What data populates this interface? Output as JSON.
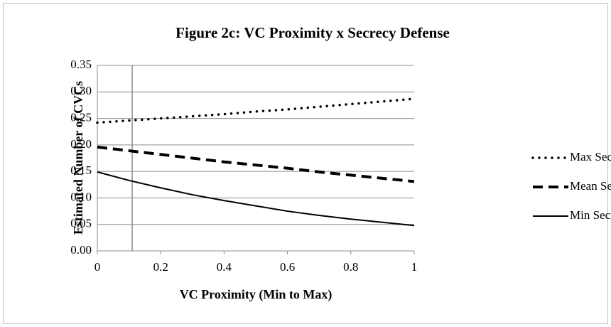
{
  "chart_data": {
    "type": "line",
    "title": "Figure 2c: VC Proximity x Secrecy Defense",
    "x_label": "VC Proximity (Min to Max)",
    "y_label": "Estimated  Number of CVCs",
    "x": [
      0,
      0.1,
      0.2,
      0.3,
      0.4,
      0.5,
      0.6,
      0.7,
      0.8,
      0.9,
      1
    ],
    "series": [
      {
        "name": "Max Secrecy",
        "color": "#000000",
        "style": "dotted",
        "values": [
          0.242,
          0.246,
          0.25,
          0.254,
          0.258,
          0.263,
          0.267,
          0.272,
          0.277,
          0.282,
          0.287
        ]
      },
      {
        "name": "Mean Secrecy",
        "color": "#000000",
        "style": "dashed",
        "values": [
          0.196,
          0.189,
          0.182,
          0.175,
          0.168,
          0.162,
          0.156,
          0.149,
          0.143,
          0.137,
          0.131
        ]
      },
      {
        "name": "Min Secrecy",
        "color": "#000000",
        "style": "solid",
        "values": [
          0.149,
          0.133,
          0.119,
          0.106,
          0.095,
          0.085,
          0.075,
          0.067,
          0.06,
          0.054,
          0.048
        ]
      }
    ],
    "xlim": [
      0,
      1
    ],
    "xticks": [
      0,
      0.2,
      0.4,
      0.6,
      0.8,
      1
    ],
    "ylim": [
      0,
      0.35
    ],
    "yticks": [
      {
        "value": 0,
        "label": "0.00"
      },
      {
        "value": 0.05,
        "label": "0.05"
      },
      {
        "value": 0.1,
        "label": "0.10"
      },
      {
        "value": 0.15,
        "label": "0.15"
      },
      {
        "value": 0.2,
        "label": "0.20"
      },
      {
        "value": 0.25,
        "label": "0.25"
      },
      {
        "value": 0.3,
        "label": "0.30"
      },
      {
        "value": 0.35,
        "label": "0.35"
      }
    ],
    "vline_x": 0.11,
    "grid": true,
    "legend": "right"
  }
}
